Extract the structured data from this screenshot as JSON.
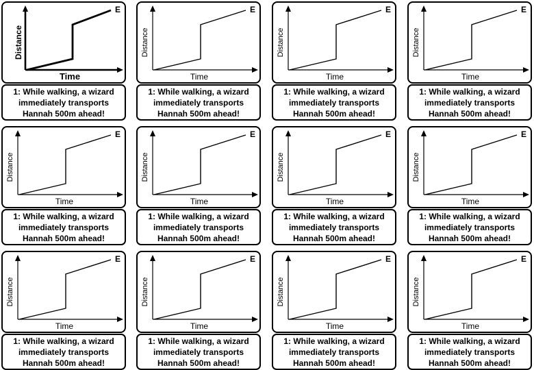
{
  "cards": [
    {
      "end_label": "E",
      "x_label": "Time",
      "y_label": "Distance",
      "caption": "1: While walking, a wizard\nimmediately transports\nHannah 500m ahead!"
    },
    {
      "end_label": "E",
      "x_label": "Time",
      "y_label": "Distance",
      "caption": "1: While walking, a wizard\nimmediately transports\nHannah 500m ahead!"
    },
    {
      "end_label": "E",
      "x_label": "Time",
      "y_label": "Distance",
      "caption": "1: While walking, a wizard\nimmediately transports\nHannah 500m ahead!"
    },
    {
      "end_label": "E",
      "x_label": "Time",
      "y_label": "Distance",
      "caption": "1: While walking, a wizard\nimmediately transports\nHannah 500m ahead!"
    },
    {
      "end_label": "E",
      "x_label": "Time",
      "y_label": "Distance",
      "caption": "1: While walking, a wizard\nimmediately transports\nHannah 500m ahead!"
    },
    {
      "end_label": "E",
      "x_label": "Time",
      "y_label": "Distance",
      "caption": "1: While walking, a wizard\nimmediately transports\nHannah 500m ahead!"
    },
    {
      "end_label": "E",
      "x_label": "Time",
      "y_label": "Distance",
      "caption": "1: While walking, a wizard\nimmediately transports\nHannah 500m ahead!"
    },
    {
      "end_label": "E",
      "x_label": "Time",
      "y_label": "Distance",
      "caption": "1: While walking, a wizard\nimmediately transports\nHannah 500m ahead!"
    },
    {
      "end_label": "E",
      "x_label": "Time",
      "y_label": "Distance",
      "caption": "1: While walking, a wizard\nimmediately transports\nHannah 500m ahead!"
    },
    {
      "end_label": "E",
      "x_label": "Time",
      "y_label": "Distance",
      "caption": "1: While walking, a wizard\nimmediately transports\nHannah 500m ahead!"
    },
    {
      "end_label": "E",
      "x_label": "Time",
      "y_label": "Distance",
      "caption": "1: While walking, a wizard\nimmediately transports\nHannah 500m ahead!"
    },
    {
      "end_label": "E",
      "x_label": "Time",
      "y_label": "Distance",
      "caption": "1: While walking, a wizard\nimmediately transports\nHannah 500m ahead!"
    }
  ]
}
